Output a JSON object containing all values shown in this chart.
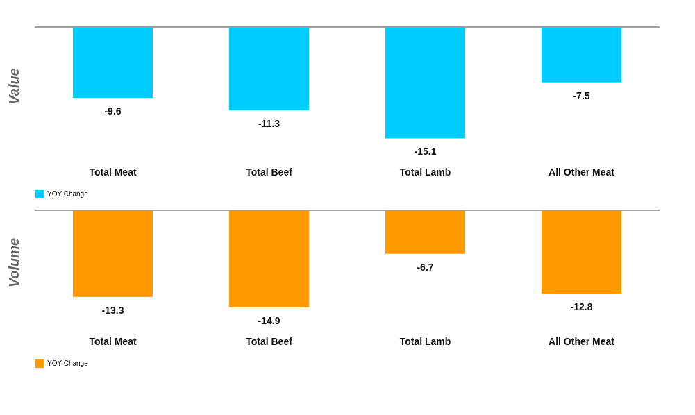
{
  "chart_data": [
    {
      "type": "bar",
      "ylabel": "Value",
      "categories": [
        "Total Meat",
        "Total Beef",
        "Total Lamb",
        "All Other Meat"
      ],
      "series": [
        {
          "name": "YOY Change",
          "color": "#00ccff",
          "values": [
            -9.6,
            -11.3,
            -15.1,
            -7.5
          ]
        }
      ],
      "data_labels": true,
      "legend": "bottom"
    },
    {
      "type": "bar",
      "ylabel": "Volume",
      "categories": [
        "Total Meat",
        "Total Beef",
        "Total Lamb",
        "All Other Meat"
      ],
      "series": [
        {
          "name": "YOY Change",
          "color": "#ff9900",
          "values": [
            -13.3,
            -14.9,
            -6.7,
            -12.8
          ]
        }
      ],
      "data_labels": true,
      "legend": "bottom"
    }
  ]
}
